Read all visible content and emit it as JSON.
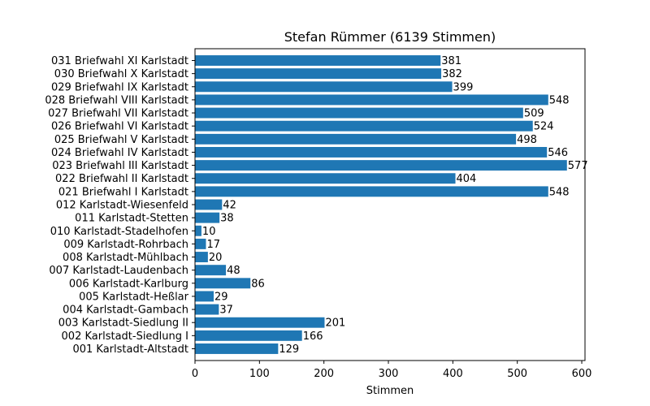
{
  "chart_data": {
    "type": "bar",
    "orientation": "horizontal",
    "title": "Stefan Rümmer (6139 Stimmen)",
    "xlabel": "Stimmen",
    "ylabel": "",
    "xlim": [
      0,
      605
    ],
    "xticks": [
      0,
      100,
      200,
      300,
      400,
      500,
      600
    ],
    "grid": false,
    "bar_color": "#1f77b4",
    "categories": [
      "001 Karlstadt-Altstadt",
      "002 Karlstadt-Siedlung I",
      "003 Karlstadt-Siedlung II",
      "004 Karlstadt-Gambach",
      "005 Karlstadt-Heßlar",
      "006 Karlstadt-Karlburg",
      "007 Karlstadt-Laudenbach",
      "008 Karlstadt-Mühlbach",
      "009 Karlstadt-Rohrbach",
      "010 Karlstadt-Stadelhofen",
      "011 Karlstadt-Stetten",
      "012 Karlstadt-Wiesenfeld",
      "021 Briefwahl I Karlstadt",
      "022 Briefwahl II Karlstadt",
      "023 Briefwahl III Karlstadt",
      "024 Briefwahl IV Karlstadt",
      "025 Briefwahl V Karlstadt",
      "026 Briefwahl VI Karlstadt",
      "027 Briefwahl VII Karlstadt",
      "028 Briefwahl VIII Karlstadt",
      "029 Briefwahl IX Karlstadt",
      "030 Briefwahl X Karlstadt",
      "031 Briefwahl XI Karlstadt"
    ],
    "values": [
      129,
      166,
      201,
      37,
      29,
      86,
      48,
      20,
      17,
      10,
      38,
      42,
      548,
      404,
      577,
      546,
      498,
      524,
      509,
      548,
      399,
      382,
      381
    ]
  }
}
